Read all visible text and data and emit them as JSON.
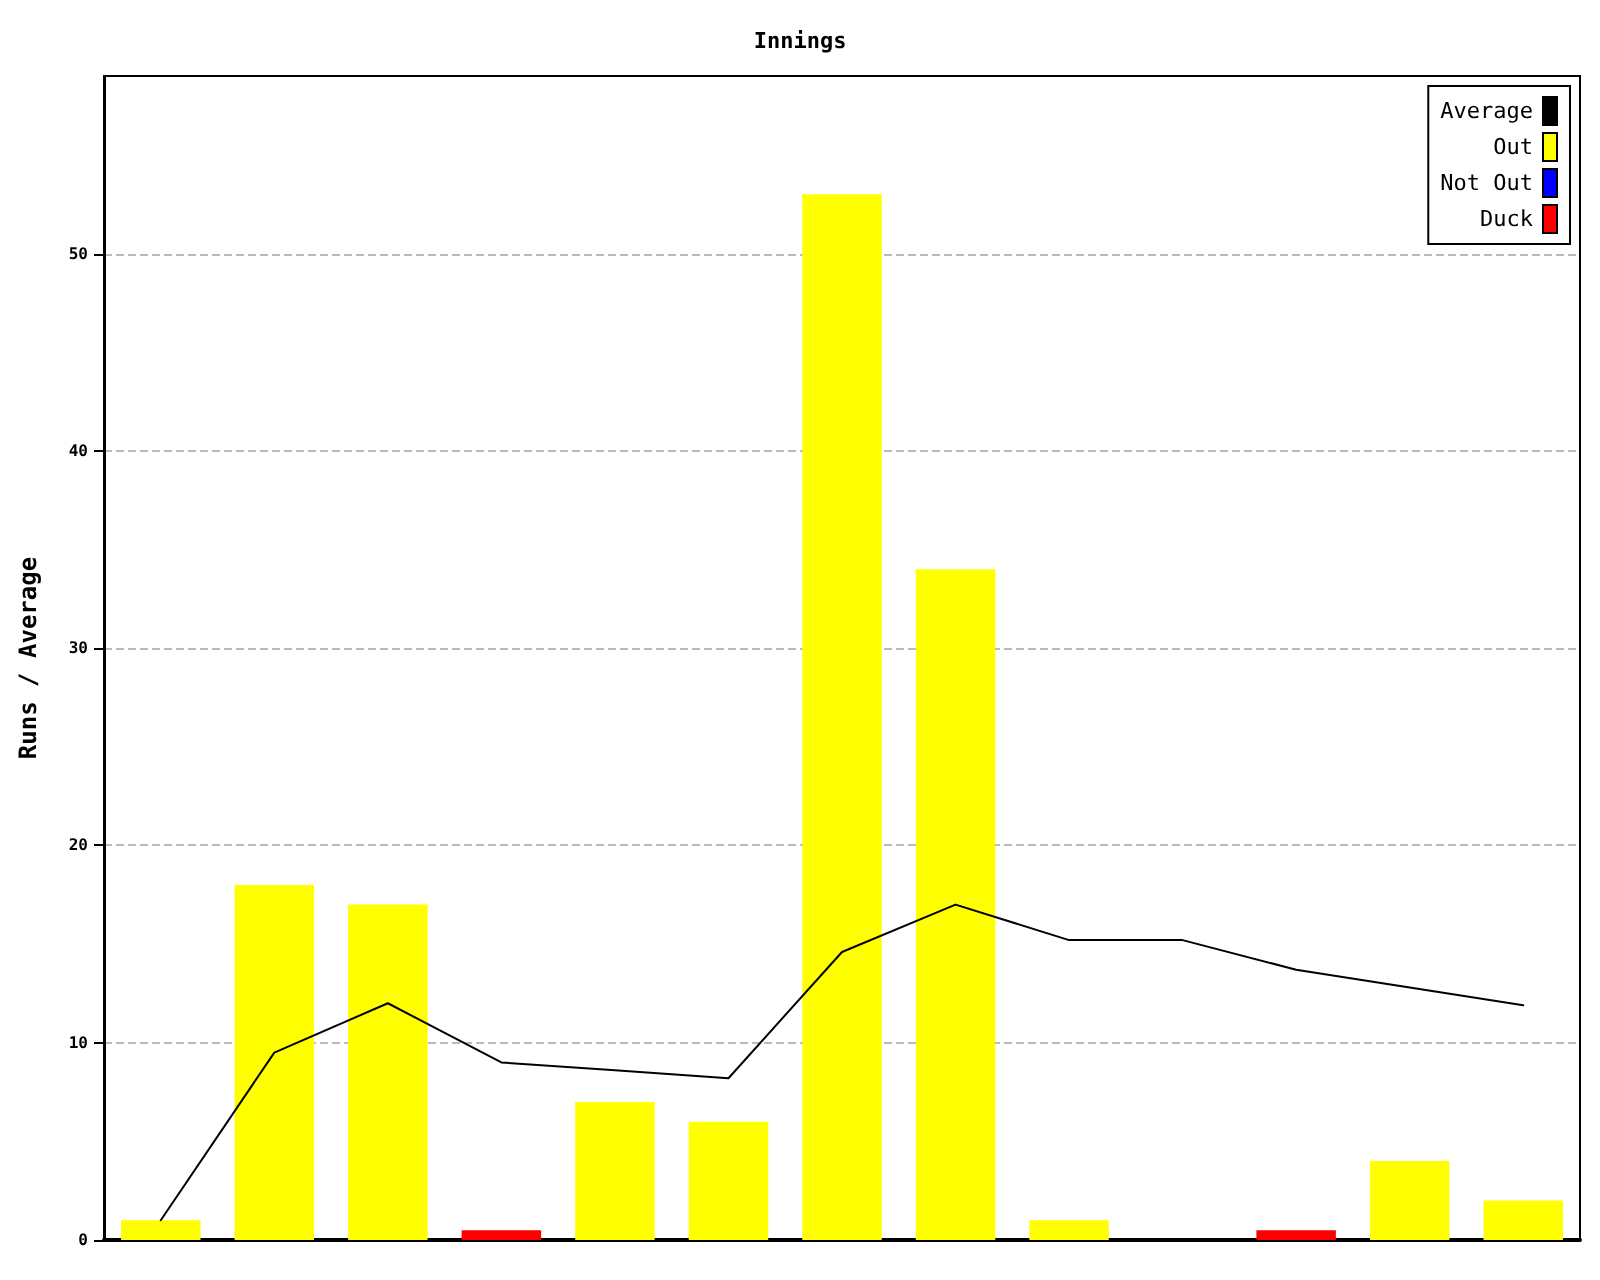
{
  "chart_data": {
    "type": "bar",
    "title": "Innings",
    "ylabel": "Runs / Average",
    "categories": [
      null,
      null,
      null,
      null,
      null,
      null,
      null,
      null,
      null,
      null,
      null,
      null,
      null
    ],
    "series": [
      {
        "name": "Average",
        "type": "line",
        "color": "#000000",
        "values": [
          1,
          9.5,
          12,
          9,
          8.6,
          8.2,
          14.6,
          17,
          15.2,
          15.2,
          13.7,
          12.8,
          11.9
        ]
      },
      {
        "name": "Out",
        "color": "#ffff00",
        "values": [
          1,
          18,
          17,
          null,
          7,
          6,
          53,
          34,
          1,
          null,
          null,
          4,
          2
        ]
      },
      {
        "name": "Not Out",
        "color": "#0000ff",
        "values": [
          null,
          null,
          null,
          null,
          null,
          null,
          null,
          null,
          null,
          null,
          null,
          null,
          null
        ]
      },
      {
        "name": "Duck",
        "color": "#ff0000",
        "values": [
          null,
          null,
          null,
          0.5,
          null,
          null,
          null,
          null,
          null,
          null,
          0.5,
          null,
          null
        ]
      }
    ],
    "stacked": true,
    "ylim": [
      0,
      59
    ],
    "yticks": [
      0,
      10,
      20,
      30,
      40,
      50
    ],
    "grid": "y",
    "legend": "top right",
    "marker": "none",
    "line_style": "solid"
  }
}
